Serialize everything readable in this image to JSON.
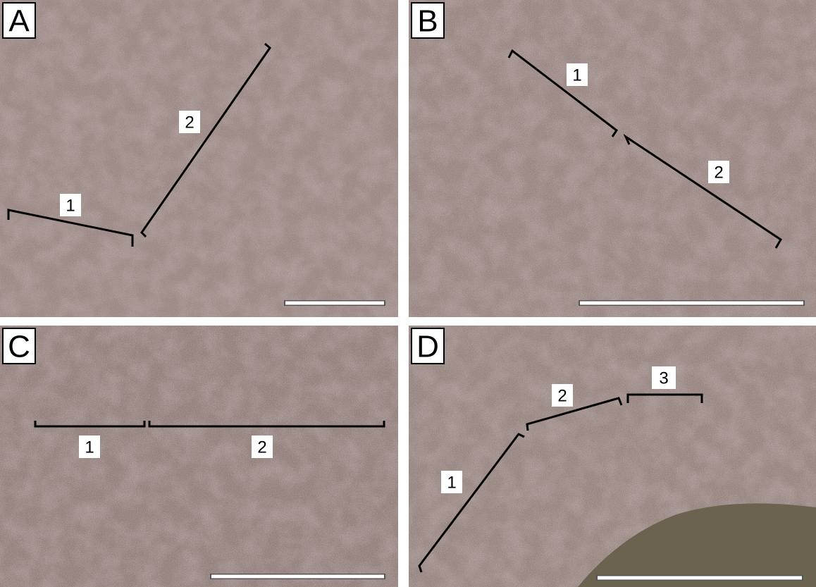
{
  "panels": [
    {
      "letter": "A",
      "labels": [
        "1",
        "2"
      ]
    },
    {
      "letter": "B",
      "labels": [
        "1",
        "2"
      ]
    },
    {
      "letter": "C",
      "labels": [
        "1",
        "2"
      ]
    },
    {
      "letter": "D",
      "labels": [
        "1",
        "2",
        "3"
      ]
    }
  ]
}
